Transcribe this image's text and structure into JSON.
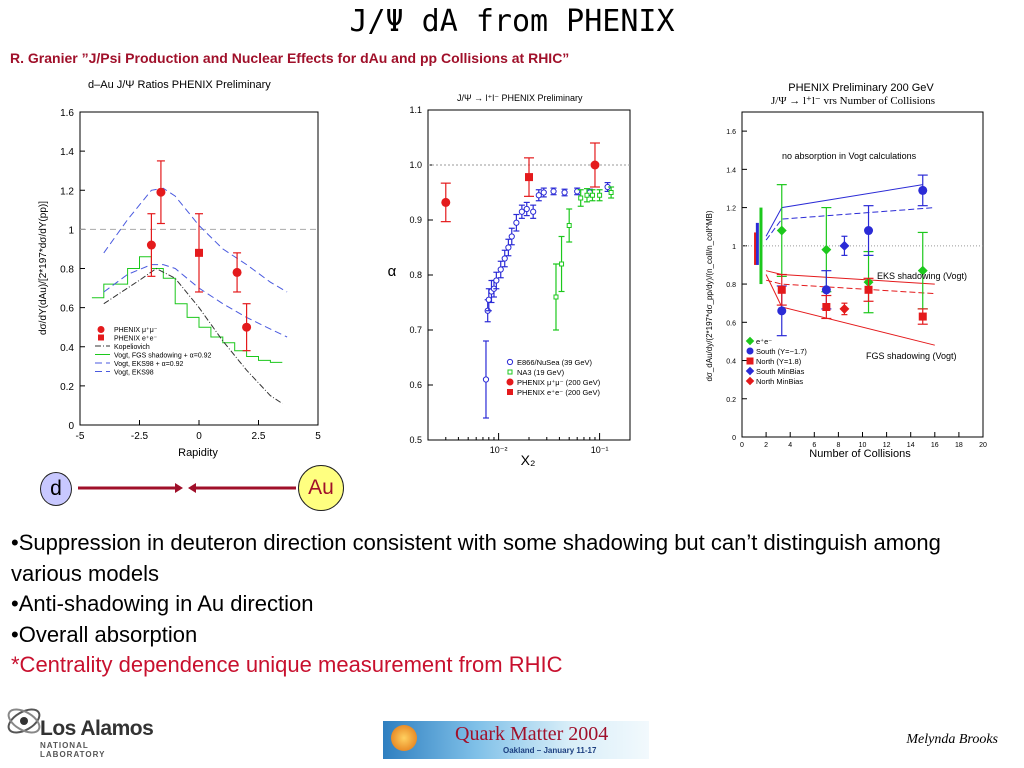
{
  "title": "J/Ψ dA from PHENIX",
  "subtitle": "R. Granier ”J/Psi Production and Nuclear Effects for dAu and pp Collisions at RHIC”",
  "particles": {
    "left": "d",
    "right": "Au"
  },
  "bullets": [
    "•Suppression in deuteron direction consistent with some shadowing but can’t distinguish among various models",
    "•Anti-shadowing in Au direction",
    "•Overall absorption"
  ],
  "bullet_highlight": "*Centrality dependence unique measurement from RHIC",
  "logos": {
    "lanl_main": "Los Alamos",
    "lanl_sub": "NATIONAL LABORATORY",
    "qm_title": "Quark Matter 2004",
    "qm_sub": "Oakland – January 11-17"
  },
  "author": "Melynda Brooks",
  "colors": {
    "red": "#e41a1c",
    "blue": "#2b2bd6",
    "green": "#1cc81c",
    "dashblue": "#4a5adf",
    "title_red": "#a0102a"
  },
  "chart_data": [
    {
      "type": "scatter",
      "title": "d–Au J/Ψ Ratios  PHENIX Preliminary",
      "xlabel": "Rapidity",
      "ylabel": "dσ/dY(dAu)/[2*197*dσ/dY(pp)]",
      "xlim": [
        -5,
        5
      ],
      "ylim": [
        0,
        1.6
      ],
      "xticks": [
        "-5",
        "-2.5",
        "0",
        "2.5",
        "5"
      ],
      "yticks": [
        "0",
        "0.2",
        "0.4",
        "0.6",
        "0.8",
        "1",
        "1.2",
        "1.4",
        "1.6"
      ],
      "legend": [
        "PHENIX μ⁺μ⁻",
        "PHENIX e⁺e⁻",
        "Kopeliovich",
        "Vogt, FGS shadowing + α=0.92",
        "Vogt, EKS98 + α=0.92",
        "Vogt, EKS98"
      ],
      "mumu": [
        {
          "x": -2.0,
          "y": 0.92,
          "err": 0.16
        },
        {
          "x": -1.6,
          "y": 1.19,
          "err": 0.16
        },
        {
          "x": 1.6,
          "y": 0.78,
          "err": 0.1
        },
        {
          "x": 2.0,
          "y": 0.5,
          "err": 0.12
        }
      ],
      "ee": [
        {
          "x": 0.0,
          "y": 0.88,
          "err": 0.2
        }
      ],
      "kopeliovich": [
        [
          -4,
          0.62
        ],
        [
          -2.5,
          0.74
        ],
        [
          -1.8,
          0.8
        ],
        [
          -1,
          0.75
        ],
        [
          0,
          0.6
        ],
        [
          1,
          0.43
        ],
        [
          2,
          0.28
        ],
        [
          3,
          0.15
        ],
        [
          3.5,
          0.11
        ]
      ],
      "eks98": [
        [
          -4,
          0.88
        ],
        [
          -3,
          1.05
        ],
        [
          -2,
          1.2
        ],
        [
          -1.5,
          1.21
        ],
        [
          -1,
          1.17
        ],
        [
          0,
          1.02
        ],
        [
          1,
          0.9
        ],
        [
          2,
          0.82
        ],
        [
          3,
          0.73
        ],
        [
          3.7,
          0.68
        ]
      ],
      "eks98_alpha": [
        [
          -4,
          0.68
        ],
        [
          -3,
          0.77
        ],
        [
          -2,
          0.82
        ],
        [
          -1.5,
          0.82
        ],
        [
          -1,
          0.8
        ],
        [
          0,
          0.7
        ],
        [
          1,
          0.62
        ],
        [
          2,
          0.55
        ],
        [
          3,
          0.49
        ],
        [
          3.7,
          0.45
        ]
      ],
      "fgs": [
        [
          -4.5,
          0.65
        ],
        [
          -4,
          0.65
        ],
        [
          -4,
          0.72
        ],
        [
          -3,
          0.72
        ],
        [
          -3,
          0.8
        ],
        [
          -2.5,
          0.8
        ],
        [
          -2.5,
          0.86
        ],
        [
          -2,
          0.86
        ],
        [
          -2,
          0.8
        ],
        [
          -1.5,
          0.8
        ],
        [
          -1.5,
          0.75
        ],
        [
          -1,
          0.75
        ],
        [
          -1,
          0.62
        ],
        [
          -0.5,
          0.62
        ],
        [
          -0.5,
          0.55
        ],
        [
          0,
          0.55
        ],
        [
          0,
          0.5
        ],
        [
          0.5,
          0.5
        ],
        [
          0.5,
          0.45
        ],
        [
          1,
          0.45
        ],
        [
          1,
          0.42
        ],
        [
          1.5,
          0.42
        ],
        [
          1.5,
          0.38
        ],
        [
          2,
          0.38
        ],
        [
          2,
          0.35
        ],
        [
          2.5,
          0.35
        ],
        [
          2.5,
          0.33
        ],
        [
          3,
          0.33
        ],
        [
          3,
          0.32
        ],
        [
          3.5,
          0.32
        ]
      ]
    },
    {
      "type": "scatter",
      "title": "J/Ψ → l⁺l⁻  PHENIX Preliminary",
      "xlabel": "X₂",
      "ylabel": "α",
      "xscale": "log",
      "xlim": [
        0.002,
        0.2
      ],
      "ylim": [
        0.5,
        1.1
      ],
      "xticks": [
        "10⁻²",
        "10⁻¹"
      ],
      "yticks": [
        "0.5",
        "0.6",
        "0.7",
        "0.8",
        "0.9",
        "1.0",
        "1.1"
      ],
      "legend": [
        "E866/NuSea (39 GeV)",
        "NA3 (19 GeV)",
        "PHENIX μ⁺μ⁻ (200 GeV)",
        "PHENIX e⁺e⁻ (200 GeV)"
      ],
      "e866": [
        [
          0.0075,
          0.61,
          0.07
        ],
        [
          0.0078,
          0.735,
          0.02
        ],
        [
          0.008,
          0.755,
          0.02
        ],
        [
          0.0085,
          0.77,
          0.02
        ],
        [
          0.009,
          0.775,
          0.015
        ],
        [
          0.0095,
          0.79,
          0.015
        ],
        [
          0.0105,
          0.81,
          0.015
        ],
        [
          0.0115,
          0.83,
          0.015
        ],
        [
          0.0125,
          0.85,
          0.015
        ],
        [
          0.0135,
          0.87,
          0.015
        ],
        [
          0.015,
          0.895,
          0.015
        ],
        [
          0.017,
          0.915,
          0.012
        ],
        [
          0.019,
          0.92,
          0.012
        ],
        [
          0.022,
          0.915,
          0.012
        ],
        [
          0.025,
          0.945,
          0.01
        ],
        [
          0.028,
          0.95,
          0.008
        ],
        [
          0.035,
          0.952,
          0.006
        ],
        [
          0.045,
          0.95,
          0.006
        ],
        [
          0.06,
          0.952,
          0.006
        ],
        [
          0.08,
          0.95,
          0.006
        ],
        [
          0.12,
          0.96,
          0.008
        ]
      ],
      "na3": [
        [
          0.037,
          0.76,
          0.06
        ],
        [
          0.042,
          0.82,
          0.05
        ],
        [
          0.05,
          0.89,
          0.03
        ],
        [
          0.065,
          0.94,
          0.015
        ],
        [
          0.075,
          0.945,
          0.012
        ],
        [
          0.085,
          0.945,
          0.01
        ],
        [
          0.1,
          0.945,
          0.01
        ],
        [
          0.13,
          0.95,
          0.01
        ]
      ],
      "phenix_mumu": [
        [
          0.003,
          0.932,
          0.035
        ],
        [
          0.09,
          1.0,
          0.04
        ]
      ],
      "phenix_ee": [
        [
          0.02,
          0.978,
          0.035
        ]
      ]
    },
    {
      "type": "scatter",
      "title": "PHENIX Preliminary  200 GeV",
      "subtitle": "J/Ψ → l⁺l⁻ vrs Number of Collisions",
      "xlabel": "Number of Collisions",
      "ylabel": "dσ_dAu/dy/(2*197*dσ_pp/dy)/(n_coll/n_coll^MB)",
      "xlim": [
        0,
        20
      ],
      "ylim": [
        0,
        1.7
      ],
      "xticks": [
        "0",
        "2",
        "4",
        "6",
        "8",
        "10",
        "12",
        "14",
        "16",
        "18",
        "20"
      ],
      "yticks": [
        "0",
        "0.2",
        "0.4",
        "0.6",
        "0.8",
        "1",
        "1.2",
        "1.4",
        "1.6"
      ],
      "annotations": [
        "no absorption in Vogt calculations",
        "EKS shadowing (Vogt)",
        "FGS shadowing (Vogt)"
      ],
      "legend": [
        "e⁺e⁻",
        "South (Y=−1.7)",
        "North (Y=1.8)",
        "South MinBias",
        "North MinBias"
      ],
      "ee": [
        [
          3.3,
          1.08,
          0.24
        ],
        [
          7,
          0.98,
          0.22
        ],
        [
          10.5,
          0.81,
          0.16
        ],
        [
          15,
          0.87,
          0.2
        ]
      ],
      "south": [
        [
          3.3,
          0.66,
          0.13
        ],
        [
          7,
          0.77,
          0.1
        ],
        [
          10.5,
          1.08,
          0.13
        ],
        [
          15,
          1.29,
          0.08
        ]
      ],
      "north": [
        [
          3.3,
          0.77,
          0.08
        ],
        [
          7,
          0.68,
          0.06
        ],
        [
          10.5,
          0.77,
          0.06
        ],
        [
          15,
          0.63,
          0.04
        ]
      ],
      "south_minbias": [
        [
          8.5,
          1.0,
          0.05
        ]
      ],
      "north_minbias": [
        [
          8.5,
          0.67,
          0.03
        ]
      ],
      "eks_south": [
        [
          2,
          1.05
        ],
        [
          3.3,
          1.2
        ],
        [
          15,
          1.32
        ]
      ],
      "eks_south_dash": [
        [
          2,
          1.03
        ],
        [
          3.3,
          1.14
        ],
        [
          16,
          1.2
        ]
      ],
      "eks_north": [
        [
          2,
          0.87
        ],
        [
          3.3,
          0.85
        ],
        [
          16,
          0.8
        ]
      ],
      "eks_north_dash": [
        [
          2,
          0.82
        ],
        [
          3.3,
          0.8
        ],
        [
          16,
          0.75
        ]
      ],
      "fgs_north": [
        [
          2,
          0.85
        ],
        [
          3.3,
          0.68
        ],
        [
          16,
          0.48
        ]
      ]
    }
  ]
}
